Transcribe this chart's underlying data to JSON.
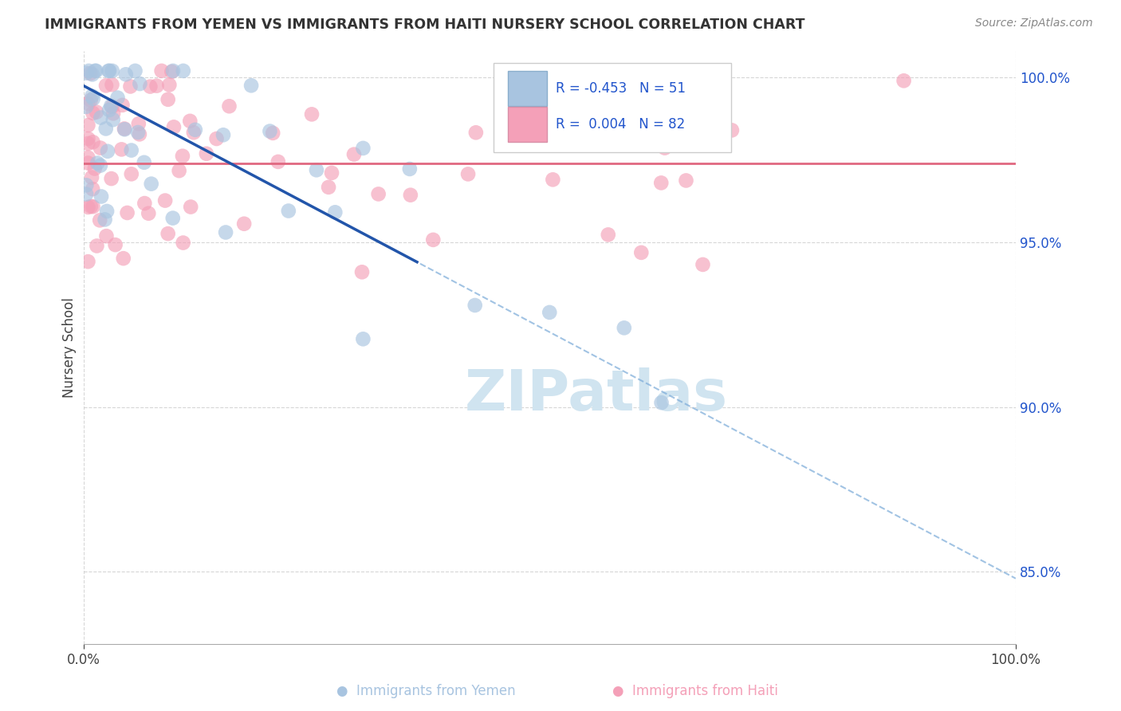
{
  "title": "IMMIGRANTS FROM YEMEN VS IMMIGRANTS FROM HAITI NURSERY SCHOOL CORRELATION CHART",
  "source": "Source: ZipAtlas.com",
  "ylabel": "Nursery School",
  "yemen_color": "#a8c4e0",
  "haiti_color": "#f4a0b8",
  "trend_yemen_solid_color": "#2255aa",
  "trend_yemen_dash_color": "#7aaad8",
  "trend_haiti_color": "#e06880",
  "watermark_color": "#d0e4f0",
  "legend_yemen_color": "#a8c4e0",
  "legend_haiti_color": "#f4a0b8",
  "legend_border_color": "#cccccc",
  "legend_text_color": "#2255cc",
  "ytick_color": "#2255cc",
  "xlim": [
    0.0,
    1.0
  ],
  "ylim": [
    0.828,
    1.008
  ],
  "ytick_vals": [
    0.85,
    0.9,
    0.95,
    1.0
  ],
  "ytick_labels": [
    "85.0%",
    "90.0%",
    "95.0%",
    "100.0%"
  ],
  "xtick_vals": [
    0.0,
    1.0
  ],
  "xtick_labels": [
    "0.0%",
    "100.0%"
  ],
  "grid_color": "#cccccc",
  "background_color": "#ffffff",
  "trend_yemen_x0": 0.0,
  "trend_yemen_y0": 0.9975,
  "trend_yemen_x1": 1.0,
  "trend_yemen_y1": 0.848,
  "trend_haiti_y": 0.9738,
  "trend_solid_end": 0.36,
  "scatter_size": 180,
  "scatter_alpha": 0.65
}
